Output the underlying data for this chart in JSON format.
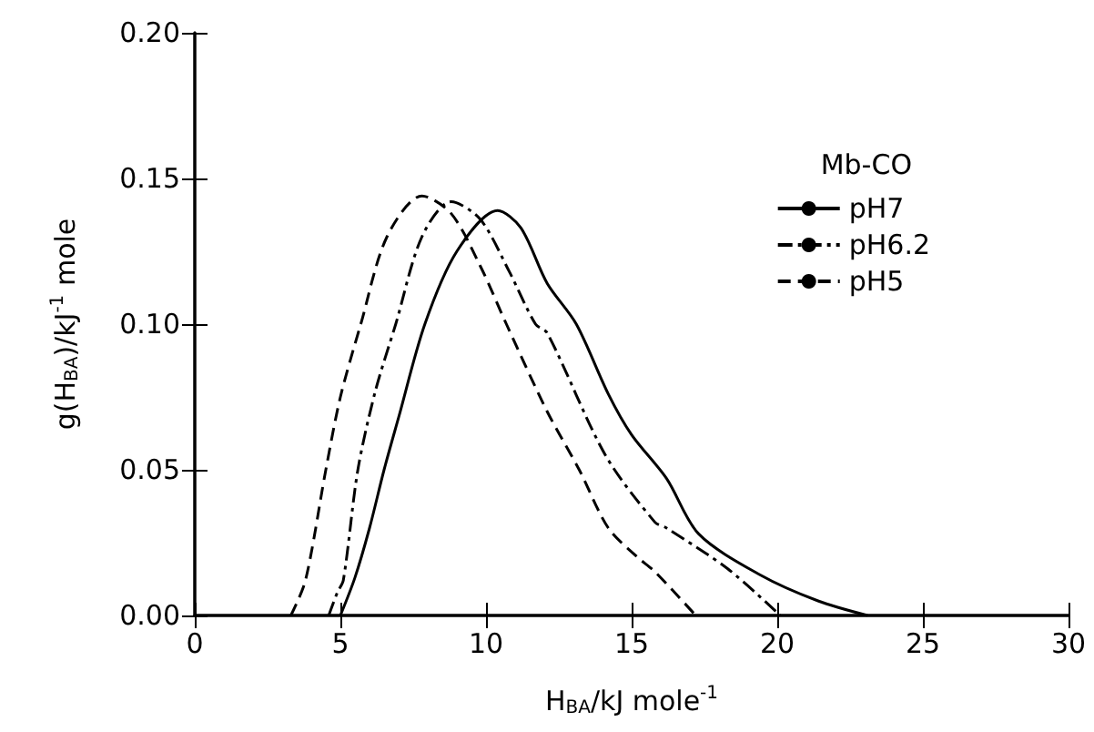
{
  "chart_data": {
    "type": "line",
    "xlabel": "H$_{BA}$/kJ mole$^{-1}$",
    "ylabel": "g(H$_{BA}$)/kJ$^{-1}$ mole",
    "legend_title": "Mb-CO",
    "xlim": [
      0,
      30
    ],
    "xticks": [
      0,
      5,
      10,
      15,
      20,
      25,
      30
    ],
    "ylim": [
      0,
      0.2
    ],
    "yticks": [
      {
        "value": 0,
        "label": "0.00"
      },
      {
        "value": 0.05,
        "label": "0.05"
      },
      {
        "value": 0.1,
        "label": "0.10"
      },
      {
        "value": 0.15,
        "label": "0.15"
      },
      {
        "value": 0.2,
        "label": "0.20"
      }
    ],
    "grid": false,
    "legend": "top right",
    "marker": "none",
    "series": [
      {
        "name": "pH7",
        "color": "#000000",
        "line_style": "solid",
        "x": [
          5.0,
          5.5,
          6.0,
          6.5,
          7.0,
          7.9,
          9.0,
          10.4,
          11.2,
          12.1,
          13.1,
          14.2,
          15.0,
          16.2,
          17.3,
          19.4,
          21.4,
          23.1
        ],
        "values": [
          0,
          0.013,
          0.03,
          0.05,
          0.068,
          0.1,
          0.125,
          0.139,
          0.133,
          0.114,
          0.1,
          0.076,
          0.062,
          0.047,
          0.028,
          0.014,
          0.005,
          0
        ]
      },
      {
        "name": "pH6.2",
        "color": "#000000",
        "line_style": "dashdot",
        "x": [
          4.6,
          4.9,
          5.1,
          5.6,
          6.2,
          6.9,
          7.8,
          8.8,
          9.8,
          10.8,
          11.7,
          12.1,
          14.1,
          15.8,
          16.2,
          18.3,
          20.1
        ],
        "values": [
          0,
          0.008,
          0.012,
          0.05,
          0.077,
          0.1,
          0.13,
          0.142,
          0.136,
          0.118,
          0.1,
          0.097,
          0.055,
          0.032,
          0.03,
          0.016,
          0
        ]
      },
      {
        "name": "pH5",
        "color": "#000000",
        "line_style": "dashed",
        "x": [
          3.3,
          3.8,
          4.5,
          5.0,
          5.7,
          6.6,
          7.8,
          8.8,
          9.8,
          10.7,
          12.1,
          13.2,
          14.2,
          15.2,
          15.8,
          17.2
        ],
        "values": [
          0,
          0.012,
          0.05,
          0.075,
          0.1,
          0.13,
          0.144,
          0.138,
          0.12,
          0.1,
          0.07,
          0.05,
          0.03,
          0.02,
          0.015,
          0
        ]
      }
    ]
  }
}
